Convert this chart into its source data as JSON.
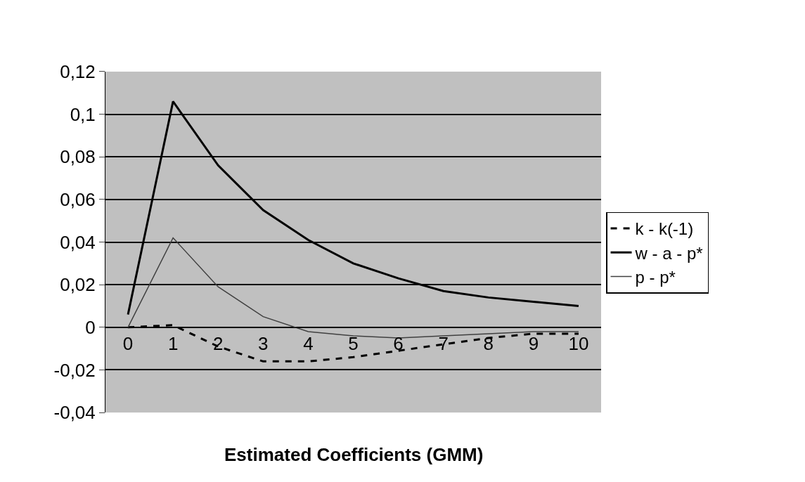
{
  "chart_data": {
    "type": "line",
    "xlabel": "Estimated Coefficients (GMM)",
    "categories": [
      "0",
      "1",
      "2",
      "3",
      "4",
      "5",
      "6",
      "7",
      "8",
      "9",
      "10"
    ],
    "series": [
      {
        "name": "k - k(-1)",
        "color": "#000000",
        "line_style": "dashed",
        "values": [
          0,
          0.001,
          -0.009,
          -0.016,
          -0.016,
          -0.014,
          -0.011,
          -0.008,
          -0.005,
          -0.003,
          -0.003
        ]
      },
      {
        "name": "w - a - p*",
        "color": "#000000",
        "line_style": "solid",
        "values": [
          0.006,
          0.106,
          0.076,
          0.055,
          0.041,
          0.03,
          0.023,
          0.017,
          0.014,
          0.012,
          0.01
        ]
      },
      {
        "name": "p - p*",
        "color": "#404040",
        "line_style": "solid",
        "values": [
          0,
          0.042,
          0.019,
          0.005,
          -0.002,
          -0.004,
          -0.005,
          -0.004,
          -0.003,
          -0.002,
          -0.002
        ]
      }
    ],
    "ylim": [
      -0.04,
      0.12
    ],
    "yticks": [
      {
        "value": -0.04,
        "label": "-0,04"
      },
      {
        "value": -0.02,
        "label": "-0,02"
      },
      {
        "value": 0,
        "label": "0"
      },
      {
        "value": 0.02,
        "label": "0,02"
      },
      {
        "value": 0.04,
        "label": "0,04"
      },
      {
        "value": 0.06,
        "label": "0,06"
      },
      {
        "value": 0.08,
        "label": "0,08"
      },
      {
        "value": 0.1,
        "label": "0,1"
      },
      {
        "value": 0.12,
        "label": "0,12"
      }
    ],
    "grid": "y",
    "legend": "right",
    "marker": "none"
  }
}
